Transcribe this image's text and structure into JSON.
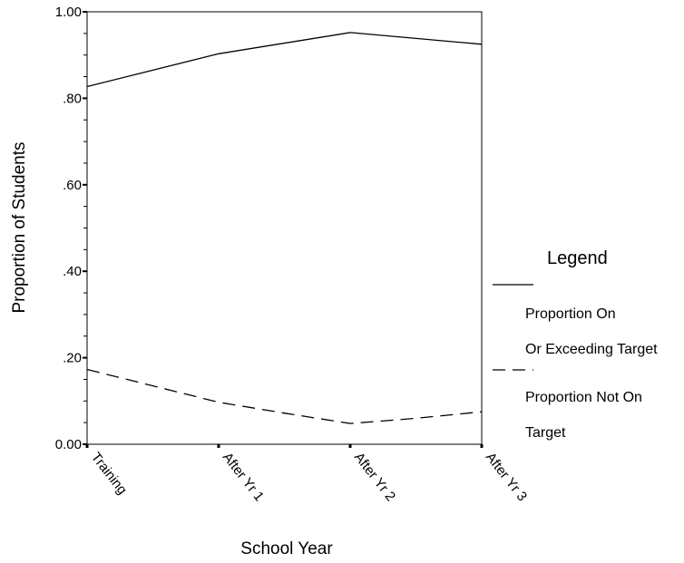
{
  "chart_data": {
    "type": "line",
    "xlabel": "School Year",
    "ylabel": "Proportion of Students",
    "categories": [
      "Training",
      "After Yr 1",
      "After Yr 2",
      "After Yr 3"
    ],
    "y_ticks": [
      "0.00",
      ".20",
      ".40",
      ".60",
      ".80",
      "1.00"
    ],
    "ylim": [
      0,
      1
    ],
    "grid": false,
    "legend_position": "right",
    "series": [
      {
        "name": "Proportion On Or Exceeding Target",
        "style": "solid",
        "color": "#000000",
        "x": [
          0,
          0.5,
          1,
          2,
          3
        ],
        "values": [
          0.827,
          0.865,
          0.903,
          0.952,
          0.925
        ]
      },
      {
        "name": "Proportion Not On Target",
        "style": "dashed",
        "color": "#000000",
        "x": [
          0,
          0.5,
          1,
          1.5,
          2,
          2.5,
          3
        ],
        "values": [
          0.173,
          0.135,
          0.097,
          0.072,
          0.048,
          0.06,
          0.075
        ]
      }
    ]
  },
  "legend": {
    "title": "Legend",
    "entries": [
      {
        "line1": "Proportion On",
        "line2": "Or Exceeding Target"
      },
      {
        "line1": "Proportion Not On",
        "line2": "Target"
      }
    ]
  }
}
